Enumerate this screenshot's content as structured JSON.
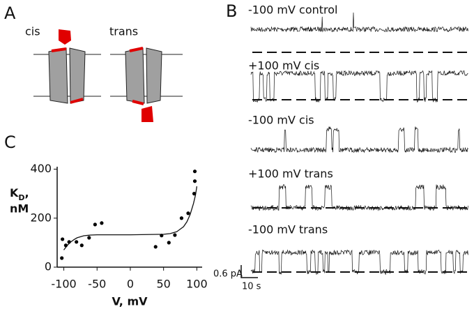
{
  "panels": {
    "a": "A",
    "b": "B",
    "c": "C"
  },
  "diagram": {
    "cis": "cis",
    "trans": "trans"
  },
  "traces": [
    "-100 mV control",
    "+100 mV cis",
    "-100 mV cis",
    "+100 mV trans",
    "-100 mV trans"
  ],
  "scale_bar": {
    "current": "0.6 pA",
    "time": "10 s"
  },
  "chart_data": {
    "type": "scatter",
    "xlabel": "V, mV",
    "ylabel": {
      "symbol": "K",
      "subscript": "D",
      "comma": ",",
      "unit": "nM"
    },
    "x": [
      -103,
      -102,
      -97,
      -92,
      -81,
      -73,
      -62,
      -53,
      -43,
      38,
      47,
      58,
      67,
      77,
      87,
      96,
      97,
      97
    ],
    "values": [
      37,
      114,
      89,
      103,
      103,
      89,
      120,
      174,
      180,
      83,
      129,
      100,
      131,
      200,
      220,
      300,
      351,
      391
    ],
    "color": "#000000",
    "fit": {
      "x": [
        -100,
        -95,
        -90,
        -85,
        -80,
        -70,
        -60,
        -50,
        0,
        50,
        60,
        70,
        80,
        85,
        90,
        95,
        98,
        100
      ],
      "values": [
        70,
        88,
        102,
        112,
        120,
        128,
        131,
        132,
        132,
        134,
        137,
        145,
        165,
        185,
        215,
        260,
        295,
        330
      ]
    },
    "xlim": [
      -110,
      108
    ],
    "ylim": [
      0,
      410
    ],
    "xticks": [
      -100,
      -50,
      0,
      50,
      100
    ],
    "yticks": [
      0,
      200,
      400
    ]
  }
}
